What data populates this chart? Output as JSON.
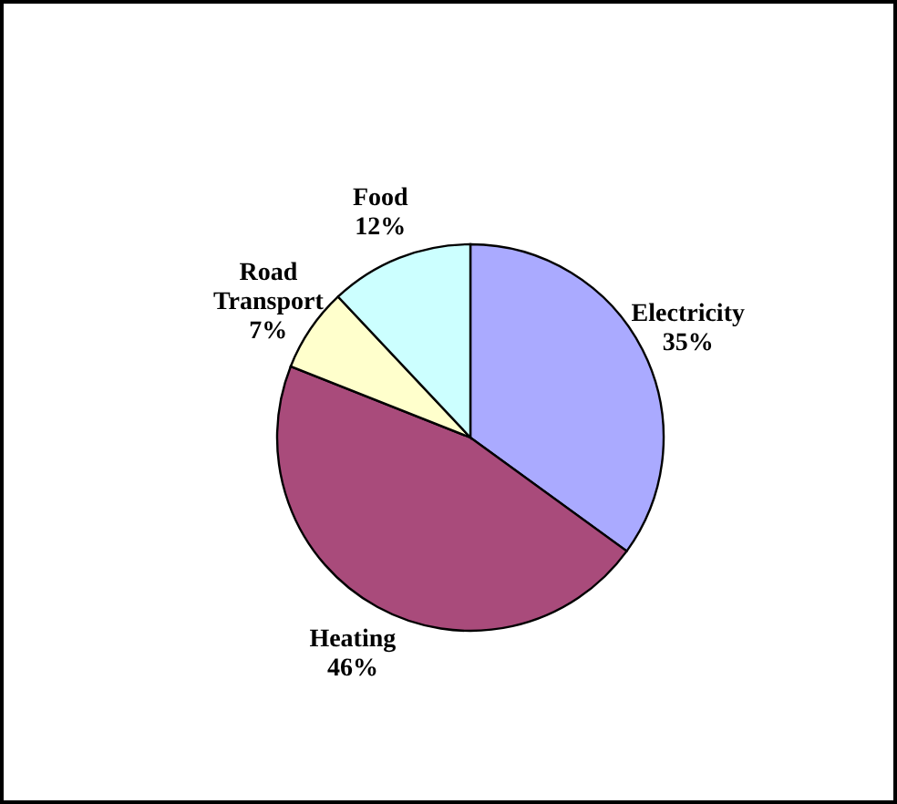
{
  "chart_data": {
    "type": "pie",
    "categories": [
      "Electricity",
      "Heating",
      "Road Transport",
      "Food"
    ],
    "values": [
      35,
      46,
      7,
      12
    ],
    "colors": [
      "#aaaaff",
      "#a94b7b",
      "#ffffcc",
      "#ccffff"
    ],
    "value_labels": [
      "35%",
      "46%",
      "7%",
      "12%"
    ]
  }
}
